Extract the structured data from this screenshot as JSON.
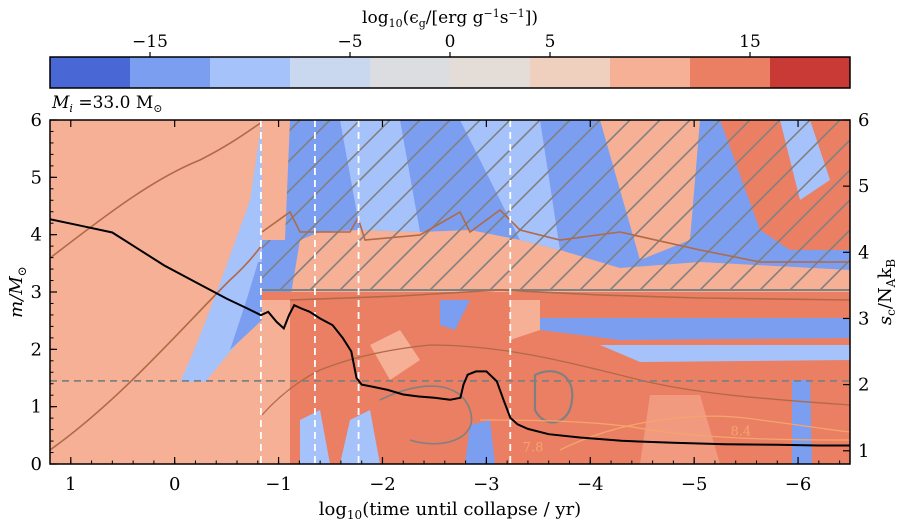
{
  "chart_data": {
    "type": "heatmap",
    "title": "",
    "colorbar": {
      "label_prefix": "log",
      "label_sub": "10",
      "label_body": "(ϵ",
      "label_body_sub": "g",
      "label_units": "/[erg g",
      "label_exp1": "−1",
      "label_mid": "s",
      "label_exp2": "−1",
      "label_end": "])",
      "range": [
        -20,
        20
      ],
      "ticks": [
        -15,
        -5,
        0,
        5,
        15
      ],
      "tick_labels": [
        "−15",
        "−5",
        "0",
        "5",
        "15"
      ],
      "bins": [
        {
          "from": -20,
          "to": -16,
          "color": "#4a67d6"
        },
        {
          "from": -16,
          "to": -12,
          "color": "#7b9ef0"
        },
        {
          "from": -12,
          "to": -8,
          "color": "#a6c2fb"
        },
        {
          "from": -8,
          "to": -4,
          "color": "#c9d7ef"
        },
        {
          "from": -4,
          "to": 0,
          "color": "#dcdde1"
        },
        {
          "from": 0,
          "to": 4,
          "color": "#e4dcd6"
        },
        {
          "from": 4,
          "to": 8,
          "color": "#efd0bf"
        },
        {
          "from": 8,
          "to": 12,
          "color": "#f5b096"
        },
        {
          "from": 12,
          "to": 16,
          "color": "#ea7f64"
        },
        {
          "from": 16,
          "to": 20,
          "color": "#c93a36"
        }
      ]
    },
    "annotation_mass": {
      "prefix": "M",
      "sub": "i",
      "text": " =33.0 M",
      "sun": "⊙"
    },
    "xaxis": {
      "label_prefix": "log",
      "label_sub": "10",
      "label_body": "(time until collapse / yr)",
      "range": [
        1.2,
        -6.5
      ],
      "ticks": [
        1,
        0,
        -1,
        -2,
        -3,
        -4,
        -5,
        -6
      ],
      "tick_labels": [
        "1",
        "0",
        "−1",
        "−2",
        "−3",
        "−4",
        "−5",
        "−6"
      ]
    },
    "yaxis_left": {
      "label": "m/M",
      "label_sun": "⊙",
      "range": [
        0,
        6
      ],
      "ticks": [
        0,
        1,
        2,
        3,
        4,
        5,
        6
      ],
      "tick_labels": [
        "0",
        "1",
        "2",
        "3",
        "4",
        "5",
        "6"
      ]
    },
    "yaxis_right": {
      "label_s": "s",
      "label_s_sub": "c",
      "label_rest": "/N",
      "label_a_sub": "A",
      "label_k": "k",
      "label_b_sub": "B",
      "range": [
        0.8,
        6
      ],
      "ticks": [
        1,
        2,
        3,
        4,
        5,
        6
      ],
      "tick_labels": [
        "1",
        "2",
        "3",
        "4",
        "5",
        "6"
      ]
    },
    "vertical_dashed_lines_x": [
      -0.83,
      -1.35,
      -1.77,
      -3.23
    ],
    "horizontal_dashed_line_y": 1.45,
    "central_entropy": {
      "x": [
        1.2,
        0.9,
        0.6,
        0.4,
        0.1,
        -0.2,
        -0.5,
        -0.7,
        -0.83,
        -0.9,
        -0.98,
        -1.05,
        -1.1,
        -1.15,
        -1.22,
        -1.3,
        -1.4,
        -1.52,
        -1.62,
        -1.7,
        -1.75,
        -1.8,
        -1.9,
        -2.05,
        -2.2,
        -2.35,
        -2.5,
        -2.65,
        -2.75,
        -2.78,
        -2.82,
        -2.9,
        -3.0,
        -3.1,
        -3.17,
        -3.23,
        -3.3,
        -3.4,
        -3.6,
        -3.9,
        -4.3,
        -4.8,
        -5.3,
        -5.8,
        -6.2,
        -6.5
      ],
      "y": [
        4.5,
        4.4,
        4.3,
        4.1,
        3.8,
        3.55,
        3.3,
        3.15,
        3.05,
        3.1,
        2.95,
        2.85,
        3.05,
        3.2,
        3.15,
        3.1,
        3.0,
        2.9,
        2.7,
        2.5,
        2.1,
        2.0,
        1.97,
        1.92,
        1.85,
        1.82,
        1.8,
        1.77,
        1.8,
        2.0,
        2.15,
        2.2,
        2.2,
        2.05,
        1.75,
        1.5,
        1.4,
        1.33,
        1.25,
        1.2,
        1.15,
        1.12,
        1.1,
        1.09,
        1.08,
        1.08
      ]
    },
    "contour_labels": [
      {
        "text": "7.8",
        "x": -3.35,
        "y": 0.22
      },
      {
        "text": "8.4",
        "x": -5.35,
        "y": 0.5
      }
    ]
  }
}
